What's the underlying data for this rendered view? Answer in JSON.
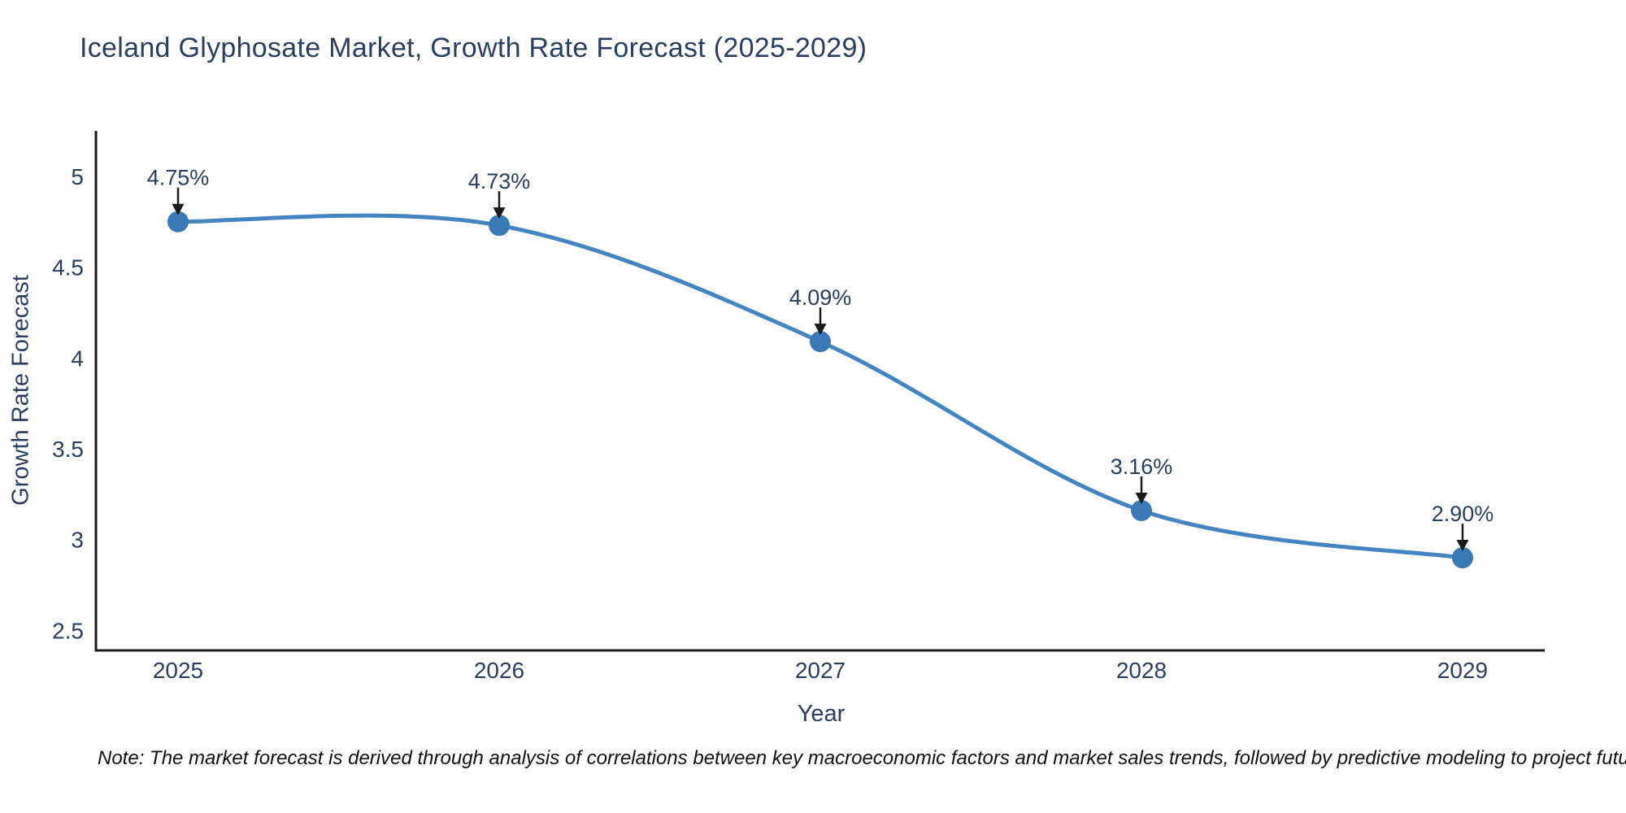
{
  "page": {
    "background": "#ffffff"
  },
  "chart_data": {
    "type": "line",
    "title": "Iceland Glyphosate Market, Growth Rate Forecast (2025-2029)",
    "xlabel": "Year",
    "ylabel": "Growth Rate Forecast",
    "categories": [
      "2025",
      "2026",
      "2027",
      "2028",
      "2029"
    ],
    "series": [
      {
        "name": "Growth Rate Forecast",
        "values": [
          4.75,
          4.73,
          4.09,
          3.16,
          2.9
        ],
        "point_labels": [
          "4.75%",
          "4.73%",
          "4.09%",
          "3.16%",
          "2.90%"
        ]
      }
    ],
    "line_shape": "spline",
    "markers": true,
    "grid": false,
    "legend": false,
    "annotations_have_arrows": true,
    "ylim": [
      2.39,
      5.25
    ],
    "yticks": {
      "values": [
        2.5,
        3,
        3.5,
        4,
        4.5,
        5
      ],
      "labels": [
        "2.5",
        "3",
        "3.5",
        "4",
        "4.5",
        "5"
      ]
    },
    "colors": {
      "line": "#4384c1",
      "marker": "#3a79b7",
      "axis": "#1a1a1a",
      "text": "#2a3f5f",
      "arrow": "#1a1a1a",
      "note": "#111111",
      "background": "#ffffff"
    }
  },
  "footnote": "Note: The market forecast is derived through analysis of correlations between key macroeconomic factors and market sales trends, followed by predictive modeling to project future sales"
}
